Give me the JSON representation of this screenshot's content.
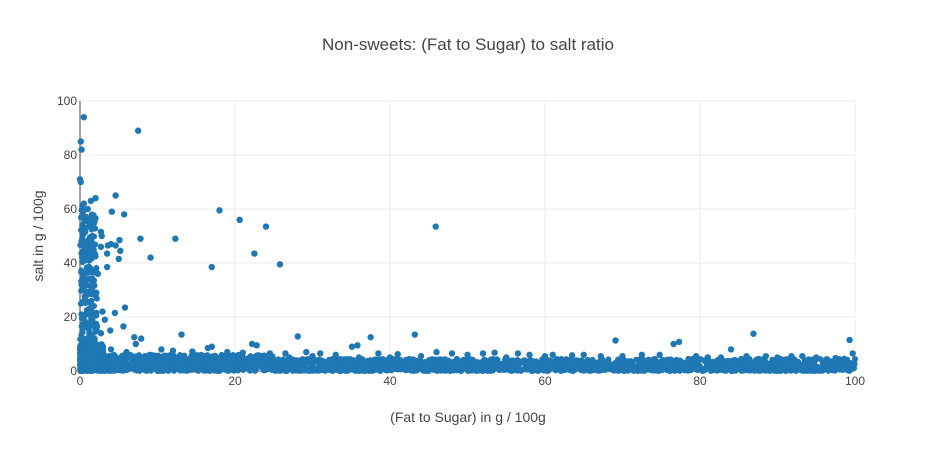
{
  "chart_data": {
    "type": "scatter",
    "title": "Non-sweets: (Fat to Sugar) to salt ratio",
    "xlabel": "(Fat to Sugar) in g / 100g",
    "ylabel": "salt in g / 100g",
    "xlim": [
      0,
      100
    ],
    "ylim": [
      0,
      100
    ],
    "x_ticks": [
      0,
      20,
      40,
      60,
      80,
      100
    ],
    "y_ticks": [
      0,
      20,
      40,
      60,
      80,
      100
    ],
    "grid": true,
    "marker_color": "#1f77b4",
    "series": [
      {
        "points": [
          [
            0.5,
            94
          ],
          [
            7.5,
            89
          ],
          [
            0.1,
            85
          ],
          [
            0.2,
            82
          ],
          [
            0.0,
            71
          ],
          [
            0.1,
            70
          ],
          [
            4.6,
            65
          ],
          [
            2.0,
            64
          ],
          [
            1.4,
            63
          ],
          [
            0.5,
            62
          ],
          [
            0.3,
            61
          ],
          [
            1.0,
            60
          ],
          [
            18.0,
            59.5
          ],
          [
            4.1,
            59
          ],
          [
            5.7,
            58
          ],
          [
            0.8,
            57
          ],
          [
            2.0,
            56.5
          ],
          [
            20.6,
            56
          ],
          [
            1.2,
            55
          ],
          [
            0.3,
            54
          ],
          [
            24.0,
            53.5
          ],
          [
            45.9,
            53.5
          ],
          [
            0.7,
            53
          ],
          [
            1.5,
            52.5
          ],
          [
            2.7,
            51.5
          ],
          [
            0.4,
            50.5
          ],
          [
            1.6,
            50
          ],
          [
            2.8,
            50
          ],
          [
            7.8,
            49
          ],
          [
            12.3,
            49
          ],
          [
            1.1,
            48.5
          ],
          [
            5.1,
            48.5
          ],
          [
            0.2,
            48
          ],
          [
            4.0,
            47
          ],
          [
            4.6,
            46.5
          ],
          [
            2.7,
            46
          ],
          [
            3.6,
            46.5
          ],
          [
            0.9,
            45.5
          ],
          [
            5.2,
            44.5
          ],
          [
            1.6,
            44
          ],
          [
            3.5,
            43.5
          ],
          [
            0.6,
            43.5
          ],
          [
            22.5,
            43.5
          ],
          [
            2.0,
            42.5
          ],
          [
            9.1,
            42
          ],
          [
            5.0,
            41.5
          ],
          [
            1.2,
            41
          ],
          [
            0.3,
            40.5
          ],
          [
            25.8,
            39.5
          ],
          [
            3.5,
            38.5
          ],
          [
            17.0,
            38.5
          ],
          [
            1.3,
            38
          ],
          [
            0.6,
            36.5
          ],
          [
            2.3,
            36
          ],
          [
            0.4,
            35
          ],
          [
            1.0,
            34
          ],
          [
            0.2,
            32
          ],
          [
            1.3,
            29
          ],
          [
            2.1,
            29
          ],
          [
            0.7,
            27.5
          ],
          [
            0.3,
            25.5
          ],
          [
            5.8,
            23.5
          ],
          [
            0.9,
            22.5
          ],
          [
            2.9,
            22
          ],
          [
            2.1,
            21.5
          ],
          [
            1.4,
            21
          ],
          [
            4.5,
            21.5
          ],
          [
            0.5,
            20
          ],
          [
            3.2,
            19
          ],
          [
            0.8,
            18
          ],
          [
            1.6,
            17
          ],
          [
            2.2,
            16.5
          ],
          [
            5.6,
            16.5
          ],
          [
            3.9,
            15
          ],
          [
            2.7,
            14
          ],
          [
            7.0,
            12.5
          ],
          [
            7.9,
            12
          ],
          [
            0.3,
            14.5
          ],
          [
            13.1,
            13.5
          ],
          [
            28.1,
            12.8
          ],
          [
            37.5,
            12.5
          ],
          [
            43.2,
            13.5
          ],
          [
            86.9,
            13.8
          ],
          [
            99.3,
            11.5
          ],
          [
            69.1,
            11.3
          ],
          [
            76.6,
            10
          ],
          [
            77.3,
            10.8
          ],
          [
            82.7,
            5
          ],
          [
            84.0,
            8
          ],
          [
            22.2,
            10
          ],
          [
            22.8,
            9.5
          ],
          [
            35.8,
            9.5
          ],
          [
            35.1,
            9
          ],
          [
            17.0,
            9
          ],
          [
            16.5,
            8.5
          ],
          [
            7.2,
            10
          ],
          [
            10.5,
            8
          ],
          [
            12.0,
            7.5
          ],
          [
            14.5,
            7.2
          ],
          [
            19.0,
            7
          ],
          [
            21.0,
            6.8
          ],
          [
            24.5,
            6.5
          ],
          [
            26.5,
            6.5
          ],
          [
            29.2,
            7
          ],
          [
            31.0,
            6.5
          ],
          [
            33.0,
            6
          ],
          [
            38.5,
            6.5
          ],
          [
            41.0,
            6.2
          ],
          [
            46.0,
            7
          ],
          [
            48.0,
            6.5
          ],
          [
            50.0,
            6
          ],
          [
            52.0,
            6.5
          ],
          [
            53.5,
            6.8
          ],
          [
            56.5,
            6.5
          ],
          [
            58.0,
            6
          ],
          [
            61.0,
            6
          ],
          [
            63.5,
            5.8
          ],
          [
            65.0,
            6
          ],
          [
            67.2,
            5.5
          ],
          [
            70.0,
            5.5
          ],
          [
            72.5,
            6
          ],
          [
            74.8,
            6
          ],
          [
            79.5,
            5.5
          ],
          [
            81.0,
            5
          ],
          [
            86.0,
            5.5
          ],
          [
            88.5,
            5.5
          ],
          [
            90.0,
            5
          ],
          [
            91.8,
            5.5
          ],
          [
            93.2,
            5.5
          ],
          [
            95.0,
            5
          ],
          [
            97.5,
            4.8
          ],
          [
            98.6,
            4.5
          ],
          [
            99.7,
            6.5
          ],
          [
            99.9,
            3
          ],
          [
            60.0,
            5.5
          ],
          [
            55.0,
            5
          ],
          [
            44.0,
            5.5
          ],
          [
            40.0,
            5
          ],
          [
            36.0,
            5
          ],
          [
            30.0,
            5.5
          ],
          [
            27.0,
            5
          ],
          [
            23.0,
            5.5
          ],
          [
            18.5,
            5.5
          ],
          [
            15.0,
            5.5
          ],
          [
            11.0,
            5.5
          ],
          [
            9.0,
            6
          ],
          [
            6.0,
            7
          ],
          [
            4.0,
            8
          ],
          [
            2.5,
            9
          ],
          [
            1.5,
            10
          ],
          [
            0.8,
            11
          ],
          [
            0.4,
            12
          ]
        ]
      }
    ]
  }
}
